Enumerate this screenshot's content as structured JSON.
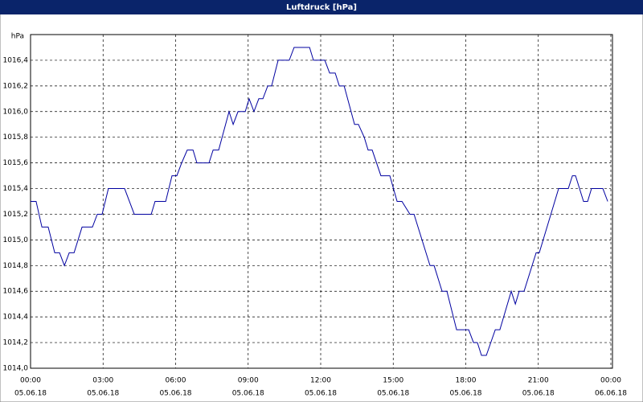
{
  "chart_data": {
    "type": "line",
    "title": "Luftdruck [hPa]",
    "y_label": "hPa",
    "x": [
      0,
      0.23,
      0.47,
      0.73,
      1.0,
      1.2,
      1.4,
      1.6,
      1.8,
      2.13,
      2.56,
      2.76,
      2.96,
      3.22,
      3.89,
      4.29,
      4.99,
      5.15,
      5.59,
      5.85,
      6.05,
      6.25,
      6.48,
      6.72,
      6.88,
      7.38,
      7.55,
      7.78,
      8.21,
      8.38,
      8.58,
      8.88,
      9.04,
      9.24,
      9.44,
      9.61,
      9.81,
      9.97,
      10.24,
      10.7,
      10.9,
      11.54,
      11.7,
      12.17,
      12.37,
      12.6,
      12.77,
      12.97,
      13.4,
      13.56,
      13.8,
      13.96,
      14.13,
      14.49,
      14.86,
      15.16,
      15.36,
      15.69,
      15.86,
      16.52,
      16.69,
      17.02,
      17.22,
      17.62,
      18.12,
      18.32,
      18.48,
      18.65,
      18.85,
      19.22,
      19.41,
      19.88,
      20.05,
      20.21,
      20.41,
      20.91,
      21.04,
      21.84,
      22.24,
      22.41,
      22.54,
      22.87,
      23.04,
      23.2,
      23.67,
      23.87
    ],
    "series": [
      {
        "name": "Luftdruck",
        "color": "#0000a0",
        "values": [
          1015.3,
          1015.3,
          1015.1,
          1015.1,
          1014.9,
          1014.9,
          1014.8,
          1014.9,
          1014.9,
          1015.1,
          1015.1,
          1015.2,
          1015.2,
          1015.4,
          1015.4,
          1015.2,
          1015.2,
          1015.3,
          1015.3,
          1015.5,
          1015.5,
          1015.6,
          1015.7,
          1015.7,
          1015.6,
          1015.6,
          1015.7,
          1015.7,
          1016.0,
          1015.9,
          1016.0,
          1016.0,
          1016.1,
          1016.0,
          1016.1,
          1016.1,
          1016.2,
          1016.2,
          1016.4,
          1016.4,
          1016.5,
          1016.5,
          1016.4,
          1016.4,
          1016.3,
          1016.3,
          1016.2,
          1016.2,
          1015.9,
          1015.9,
          1015.8,
          1015.7,
          1015.7,
          1015.5,
          1015.5,
          1015.3,
          1015.3,
          1015.2,
          1015.2,
          1014.8,
          1014.8,
          1014.6,
          1014.6,
          1014.3,
          1014.3,
          1014.2,
          1014.2,
          1014.1,
          1014.1,
          1014.3,
          1014.3,
          1014.6,
          1014.5,
          1014.6,
          1014.6,
          1014.9,
          1014.9,
          1015.4,
          1015.4,
          1015.5,
          1015.5,
          1015.3,
          1015.3,
          1015.4,
          1015.4,
          1015.3
        ]
      }
    ],
    "xlim": [
      0,
      24
    ],
    "ylim": [
      1014.0,
      1016.6
    ],
    "xticks": [
      {
        "value": 0,
        "label": "00:00",
        "date": "05.06.18"
      },
      {
        "value": 3,
        "label": "03:00",
        "date": "05.06.18"
      },
      {
        "value": 6,
        "label": "06:00",
        "date": "05.06.18"
      },
      {
        "value": 9,
        "label": "09:00",
        "date": "05.06.18"
      },
      {
        "value": 12,
        "label": "12:00",
        "date": "05.06.18"
      },
      {
        "value": 15,
        "label": "15:00",
        "date": "05.06.18"
      },
      {
        "value": 18,
        "label": "18:00",
        "date": "05.06.18"
      },
      {
        "value": 21,
        "label": "21:00",
        "date": "05.06.18"
      },
      {
        "value": 24,
        "label": "00:00",
        "date": "06.06.18"
      }
    ],
    "yticks": [
      {
        "value": 1014.0,
        "label": "1014,0"
      },
      {
        "value": 1014.2,
        "label": "1014,2"
      },
      {
        "value": 1014.4,
        "label": "1014,4"
      },
      {
        "value": 1014.6,
        "label": "1014,6"
      },
      {
        "value": 1014.8,
        "label": "1014,8"
      },
      {
        "value": 1015.0,
        "label": "1015,0"
      },
      {
        "value": 1015.2,
        "label": "1015,2"
      },
      {
        "value": 1015.4,
        "label": "1015,4"
      },
      {
        "value": 1015.6,
        "label": "1015,6"
      },
      {
        "value": 1015.8,
        "label": "1015,8"
      },
      {
        "value": 1016.0,
        "label": "1016,0"
      },
      {
        "value": 1016.2,
        "label": "1016,2"
      },
      {
        "value": 1016.4,
        "label": "1016,4"
      }
    ],
    "grid": true
  }
}
